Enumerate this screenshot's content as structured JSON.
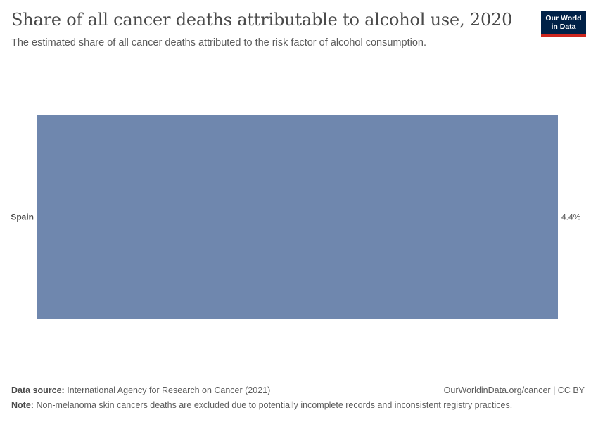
{
  "header": {
    "title": "Share of all cancer deaths attributable to alcohol use, 2020",
    "subtitle": "The estimated share of all cancer deaths attributed to the risk factor of alcohol consumption.",
    "logo_line1": "Our World",
    "logo_line2": "in Data"
  },
  "chart_data": {
    "type": "bar",
    "orientation": "horizontal",
    "title": "Share of all cancer deaths attributable to alcohol use, 2020",
    "subtitle": "The estimated share of all cancer deaths attributed to the risk factor of alcohol consumption.",
    "categories": [
      "Spain"
    ],
    "values": [
      4.4
    ],
    "value_labels": [
      "4.4%"
    ],
    "unit": "%",
    "xlim": [
      0,
      4.4
    ],
    "bar_color": "#6f87ae",
    "xlabel": "",
    "ylabel": ""
  },
  "footer": {
    "source_label": "Data source:",
    "source_text": "International Agency for Research on Cancer (2021)",
    "link_text": "OurWorldinData.org/cancer",
    "separator": "|",
    "license": "CC BY",
    "note_label": "Note:",
    "note_text": "Non-melanoma skin cancers deaths are excluded due to potentially incomplete records and inconsistent registry practices."
  }
}
